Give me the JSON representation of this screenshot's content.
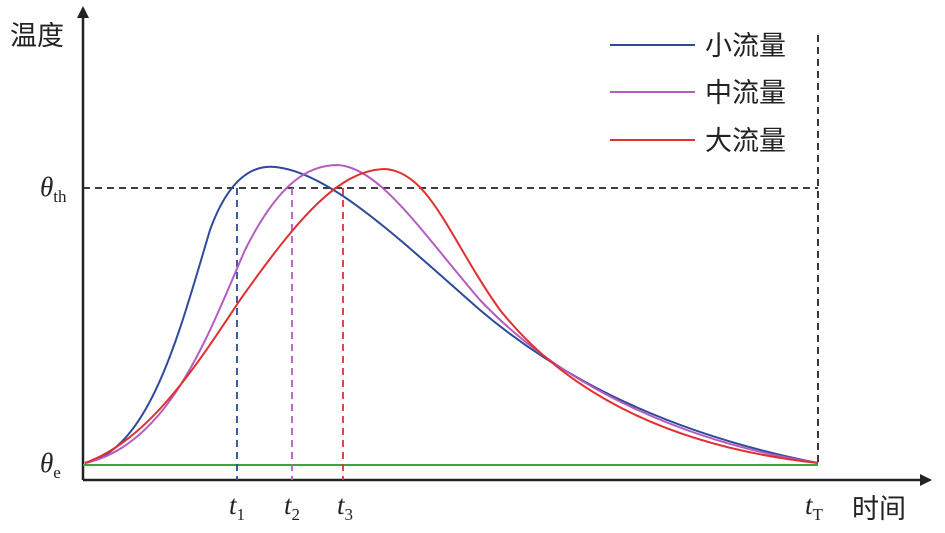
{
  "axes": {
    "y_label": "温度",
    "x_label": "时间"
  },
  "y_marks": [
    {
      "symbol": "θ",
      "sub": "th"
    },
    {
      "symbol": "θ",
      "sub": "e"
    }
  ],
  "x_marks": [
    {
      "symbol": "t",
      "sub": "1"
    },
    {
      "symbol": "t",
      "sub": "2"
    },
    {
      "symbol": "t",
      "sub": "3"
    },
    {
      "symbol": "t",
      "sub": "T"
    }
  ],
  "legend": [
    "小流量",
    "中流量",
    "大流量"
  ]
}
